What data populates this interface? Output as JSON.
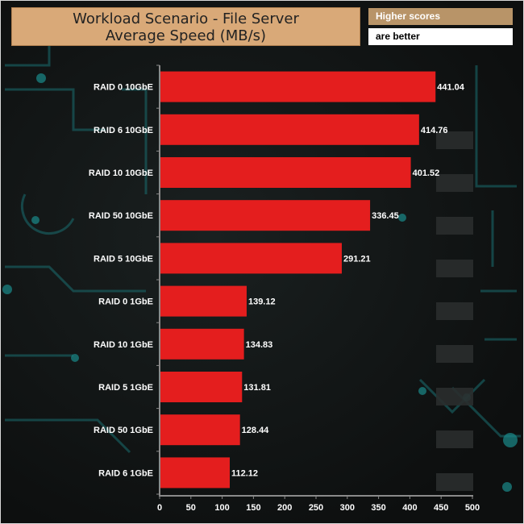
{
  "title": {
    "line1": "Workload Scenario - File Server",
    "line2": "Average Speed (MB/s)"
  },
  "notes": {
    "higher": "Higher scores",
    "better": "are better"
  },
  "colors": {
    "bar": "#e41e1e",
    "title_bg": "#d9a978",
    "note_bg": "#b89468",
    "accent_circuit": "#1e8a8a"
  },
  "chart_data": {
    "type": "bar",
    "orientation": "horizontal",
    "title": "Workload Scenario - File Server Average Speed (MB/s)",
    "categories": [
      "RAID 0 10GbE",
      "RAID 6 10GbE",
      "RAID 10 10GbE",
      "RAID 50 10GbE",
      "RAID 5 10GbE",
      "RAID 0 1GbE",
      "RAID 10 1GbE",
      "RAID 5 1GbE",
      "RAID 50 1GbE",
      "RAID 6 1GbE"
    ],
    "values": [
      441.04,
      414.76,
      401.52,
      336.45,
      291.21,
      139.12,
      134.83,
      131.81,
      128.44,
      112.12
    ],
    "value_labels": [
      "441.04",
      "414.76",
      "401.52",
      "336.45",
      "291.21",
      "139.12",
      "134.83",
      "131.81",
      "128.44",
      "112.12"
    ],
    "xlim": [
      0,
      500
    ],
    "ticks": [
      "0",
      "50",
      "100",
      "150",
      "200",
      "250",
      "300",
      "350",
      "400",
      "450",
      "500"
    ],
    "xlabel": "",
    "ylabel": "",
    "grid": false,
    "legend": "none"
  }
}
